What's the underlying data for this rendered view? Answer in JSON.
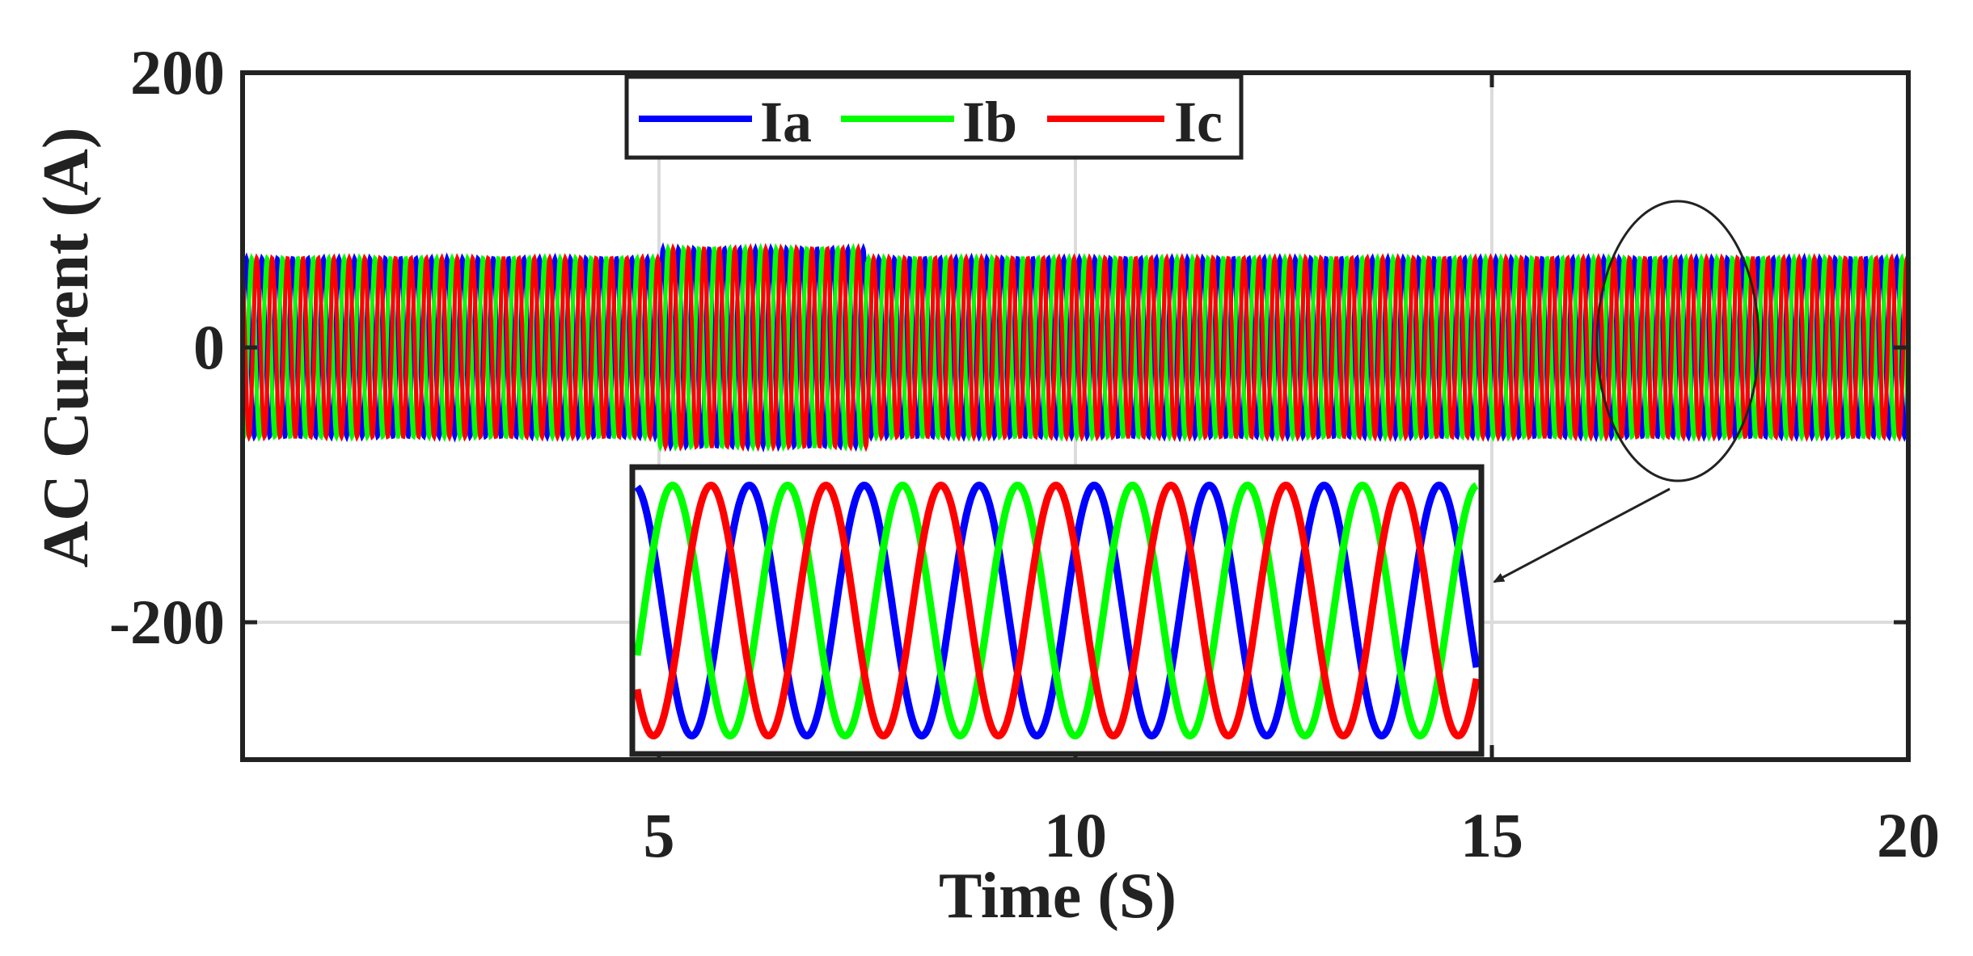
{
  "chart_data": {
    "type": "line",
    "title": "",
    "xlabel": "Time (S)",
    "ylabel": "AC Current (A)",
    "xlim": [
      0,
      20
    ],
    "ylim": [
      -300,
      200
    ],
    "x_ticks": [
      5,
      10,
      15,
      20
    ],
    "y_ticks": [
      -200,
      0,
      200
    ],
    "x_tick_labels": [
      "5",
      "10",
      "15",
      "20"
    ],
    "y_tick_labels": [
      "-200",
      "0",
      "200"
    ],
    "grid": true,
    "legend_position": "top-center",
    "series": [
      {
        "name": "Ia",
        "color": "#0000ff",
        "amplitude": 65,
        "amplitude_5_to_7_5": 72,
        "phase_deg": 0
      },
      {
        "name": "Ib",
        "color": "#00ff00",
        "amplitude": 65,
        "amplitude_5_to_7_5": 72,
        "phase_deg": -120
      },
      {
        "name": "Ic",
        "color": "#ff0000",
        "amplitude": 65,
        "amplitude_5_to_7_5": 72,
        "phase_deg": 120
      }
    ],
    "inset": {
      "description_zoom_of": [
        17.3,
        18.0
      ],
      "cycles_shown": 7.3
    },
    "annotation": "zoom-ellipse-with-arrow"
  }
}
